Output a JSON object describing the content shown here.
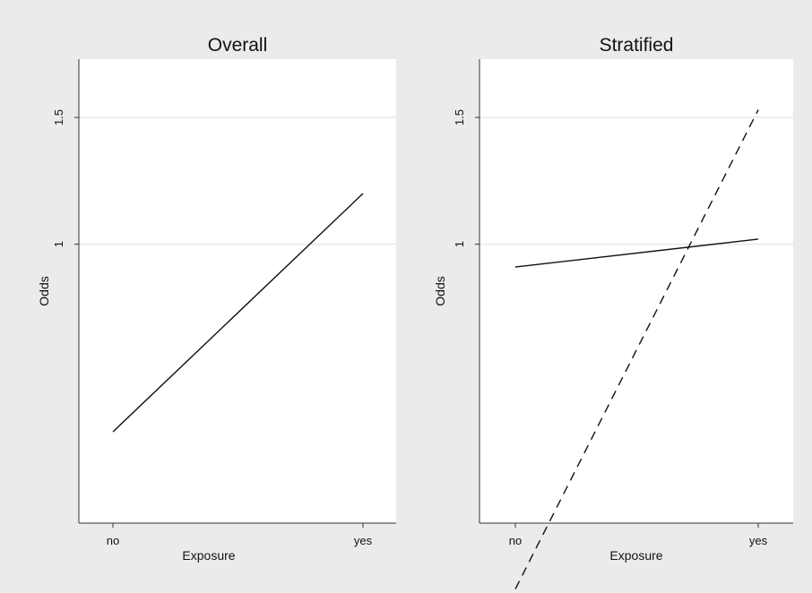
{
  "chart_data": [
    {
      "type": "line",
      "title": "Overall",
      "xlabel": "Exposure",
      "ylabel": "Odds",
      "categories": [
        "no",
        "yes"
      ],
      "ylim": [
        -0.1,
        1.73
      ],
      "yticks": [
        1,
        1.5
      ],
      "yticklabels": [
        "1",
        "1.5"
      ],
      "grid": true,
      "series": [
        {
          "values": [
            0.26,
            1.2
          ],
          "style": "solid",
          "color": "#111111"
        }
      ]
    },
    {
      "type": "line",
      "title": "Stratified",
      "xlabel": "Exposure",
      "ylabel": "Odds",
      "categories": [
        "no",
        "yes"
      ],
      "ylim": [
        -0.1,
        1.73
      ],
      "yticks": [
        1,
        1.5
      ],
      "yticklabels": [
        "1",
        "1.5"
      ],
      "grid": true,
      "series": [
        {
          "values": [
            0.91,
            1.02
          ],
          "style": "solid",
          "color": "#111111"
        },
        {
          "values": [
            -0.36,
            1.53
          ],
          "style": "dashed",
          "color": "#111111"
        }
      ]
    }
  ]
}
